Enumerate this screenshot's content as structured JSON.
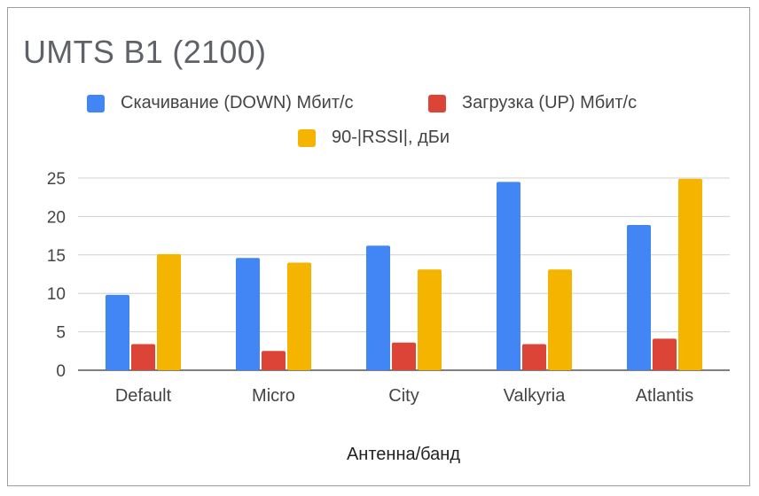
{
  "chart_data": {
    "type": "bar",
    "title": "UMTS B1 (2100)",
    "xlabel": "Антенна/банд",
    "ylabel": "",
    "ylim": [
      0,
      25
    ],
    "yticks": [
      0,
      5,
      10,
      15,
      20,
      25
    ],
    "grid": true,
    "legend_position": "top",
    "categories": [
      "Default",
      "Micro",
      "City",
      "Valkyria",
      "Atlantis"
    ],
    "series": [
      {
        "name": "Скачивание (DOWN) Мбит/с",
        "color": "#4285f4",
        "values": [
          9.8,
          14.6,
          16.2,
          24.5,
          18.9
        ]
      },
      {
        "name": "Загрузка (UP) Мбит/с",
        "color": "#db4437",
        "values": [
          3.4,
          2.5,
          3.6,
          3.4,
          4.1
        ]
      },
      {
        "name": "90-|RSSI|, дБи",
        "color": "#f4b400",
        "values": [
          15.1,
          14.0,
          13.1,
          13.1,
          24.9
        ]
      }
    ]
  }
}
